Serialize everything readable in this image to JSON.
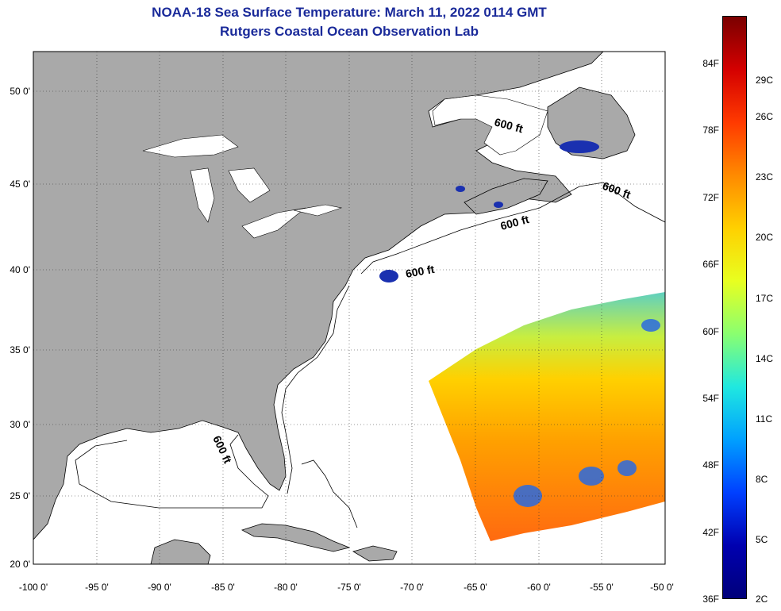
{
  "header": {
    "title": "NOAA-18 Sea Surface Temperature:  March 11, 2022 0114 GMT",
    "subtitle": "Rutgers Coastal Ocean Observation Lab"
  },
  "map": {
    "lon_range": [
      -100,
      -50
    ],
    "lat_range": [
      20,
      52.5
    ],
    "lon_ticks": [
      "-100 0'",
      "-95 0'",
      "-90 0'",
      "-85 0'",
      "-80 0'",
      "-75 0'",
      "-70 0'",
      "-65 0'",
      "-60 0'",
      "-55 0'",
      "-50 0'"
    ],
    "lat_ticks": [
      "20 0'",
      "25 0'",
      "30 0'",
      "35 0'",
      "40 0'",
      "45 0'",
      "50 0'"
    ],
    "isobath_labels": [
      "600 ft",
      "600 ft",
      "600 ft",
      "600 ft",
      "600 ft"
    ],
    "land_color": "#a9a9a9",
    "ocean_color": "#ffffff"
  },
  "colorbar": {
    "fahrenheit_labels": [
      "84F",
      "78F",
      "72F",
      "66F",
      "60F",
      "54F",
      "48F",
      "42F",
      "36F"
    ],
    "celsius_labels": [
      "29C",
      "26C",
      "23C",
      "20C",
      "17C",
      "14C",
      "11C",
      "8C",
      "5C",
      "2C"
    ],
    "colors": [
      "#7a0000",
      "#d40000",
      "#ff3a00",
      "#ff8a00",
      "#ffd000",
      "#e8ff20",
      "#8aff70",
      "#20e8e0",
      "#00a0ff",
      "#0040ff",
      "#0000b0",
      "#00007a"
    ]
  }
}
